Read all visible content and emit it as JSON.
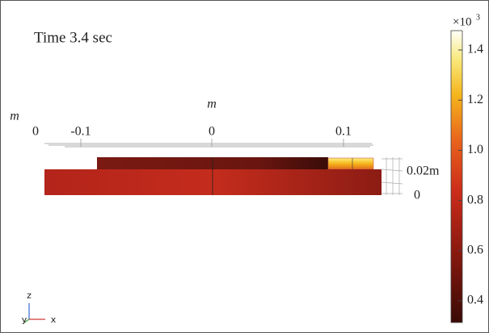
{
  "plot": {
    "title": "Time 3.4 sec",
    "x_axis": {
      "unit_label": "m",
      "ticks": [
        "0",
        "-0.1",
        "0",
        "0.1"
      ]
    },
    "left_unit": "m",
    "z_axis": {
      "ticks": [
        "0.02m",
        "0"
      ]
    },
    "colorbar": {
      "multiplier": "×10",
      "exponent": "3",
      "ticks": [
        "1.4",
        "1.2",
        "1.0",
        "0.8",
        "0.6",
        "0.4"
      ]
    },
    "triad": {
      "z": "z",
      "y": "y",
      "x": "x"
    }
  }
}
